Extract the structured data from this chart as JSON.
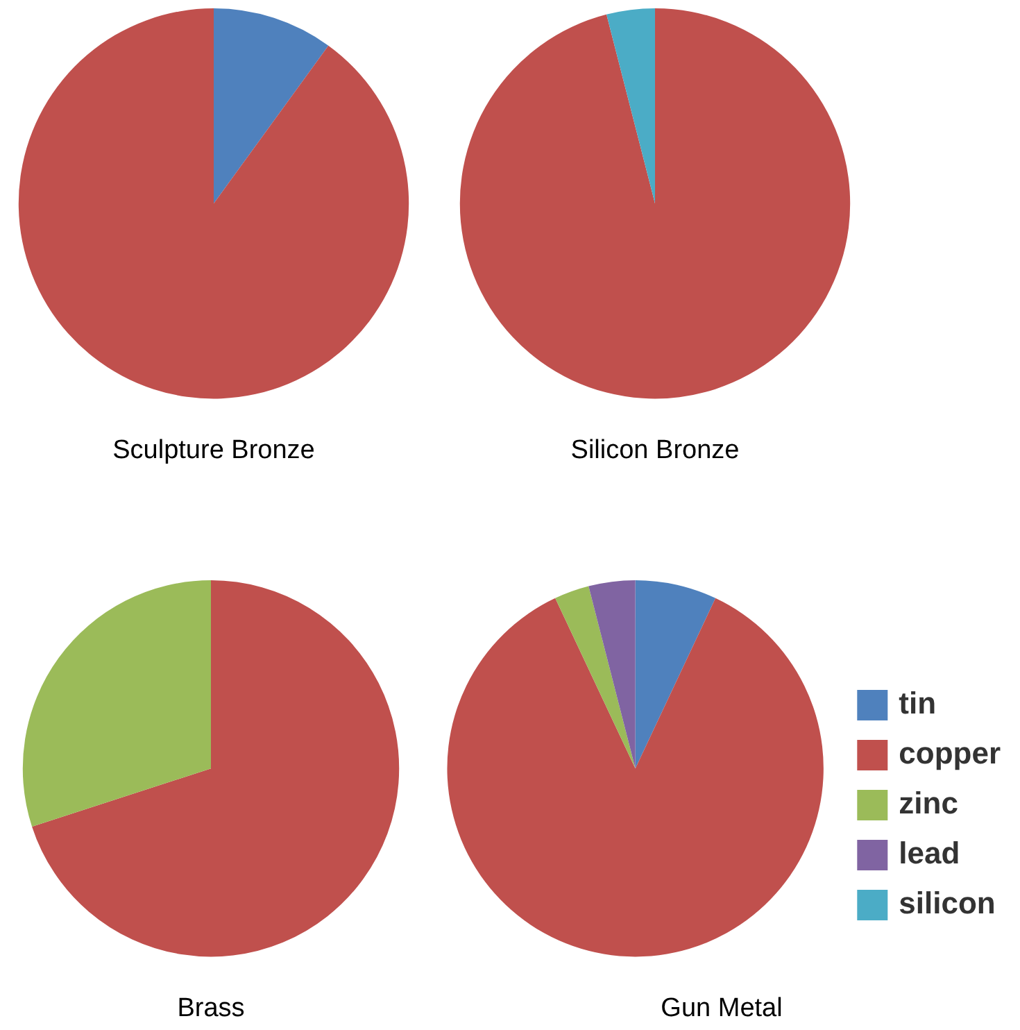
{
  "chart_data": [
    {
      "type": "pie",
      "title": "Sculpture Bronze",
      "categories": [
        null,
        null,
        null,
        null,
        null
      ],
      "values": [
        10,
        90,
        0,
        0,
        0
      ],
      "colors": [
        "#4f81bd",
        "#c0504d",
        "#9bbb59",
        "#8064a2",
        "#4bacc6"
      ],
      "legend": false
    },
    {
      "type": "pie",
      "title": "Silicon Bronze",
      "categories": [
        null,
        null,
        null,
        null,
        null
      ],
      "values": [
        0,
        96,
        0,
        0,
        4
      ],
      "colors": [
        "#4f81bd",
        "#c0504d",
        "#9bbb59",
        "#8064a2",
        "#4bacc6"
      ],
      "legend": false
    },
    {
      "type": "pie",
      "title": "Brass",
      "categories": [
        null,
        null,
        null,
        null,
        null
      ],
      "values": [
        0,
        70,
        30,
        0,
        0
      ],
      "colors": [
        "#4f81bd",
        "#c0504d",
        "#9bbb59",
        "#8064a2",
        "#4bacc6"
      ],
      "legend": false
    },
    {
      "type": "pie",
      "title": "Gun Metal",
      "categories": [
        "tin",
        "copper",
        "zinc",
        "lead",
        "silicon"
      ],
      "values": [
        7,
        86,
        3,
        4,
        0
      ],
      "colors": [
        "#4f81bd",
        "#c0504d",
        "#9bbb59",
        "#8064a2",
        "#4bacc6"
      ],
      "legend": "right"
    }
  ]
}
